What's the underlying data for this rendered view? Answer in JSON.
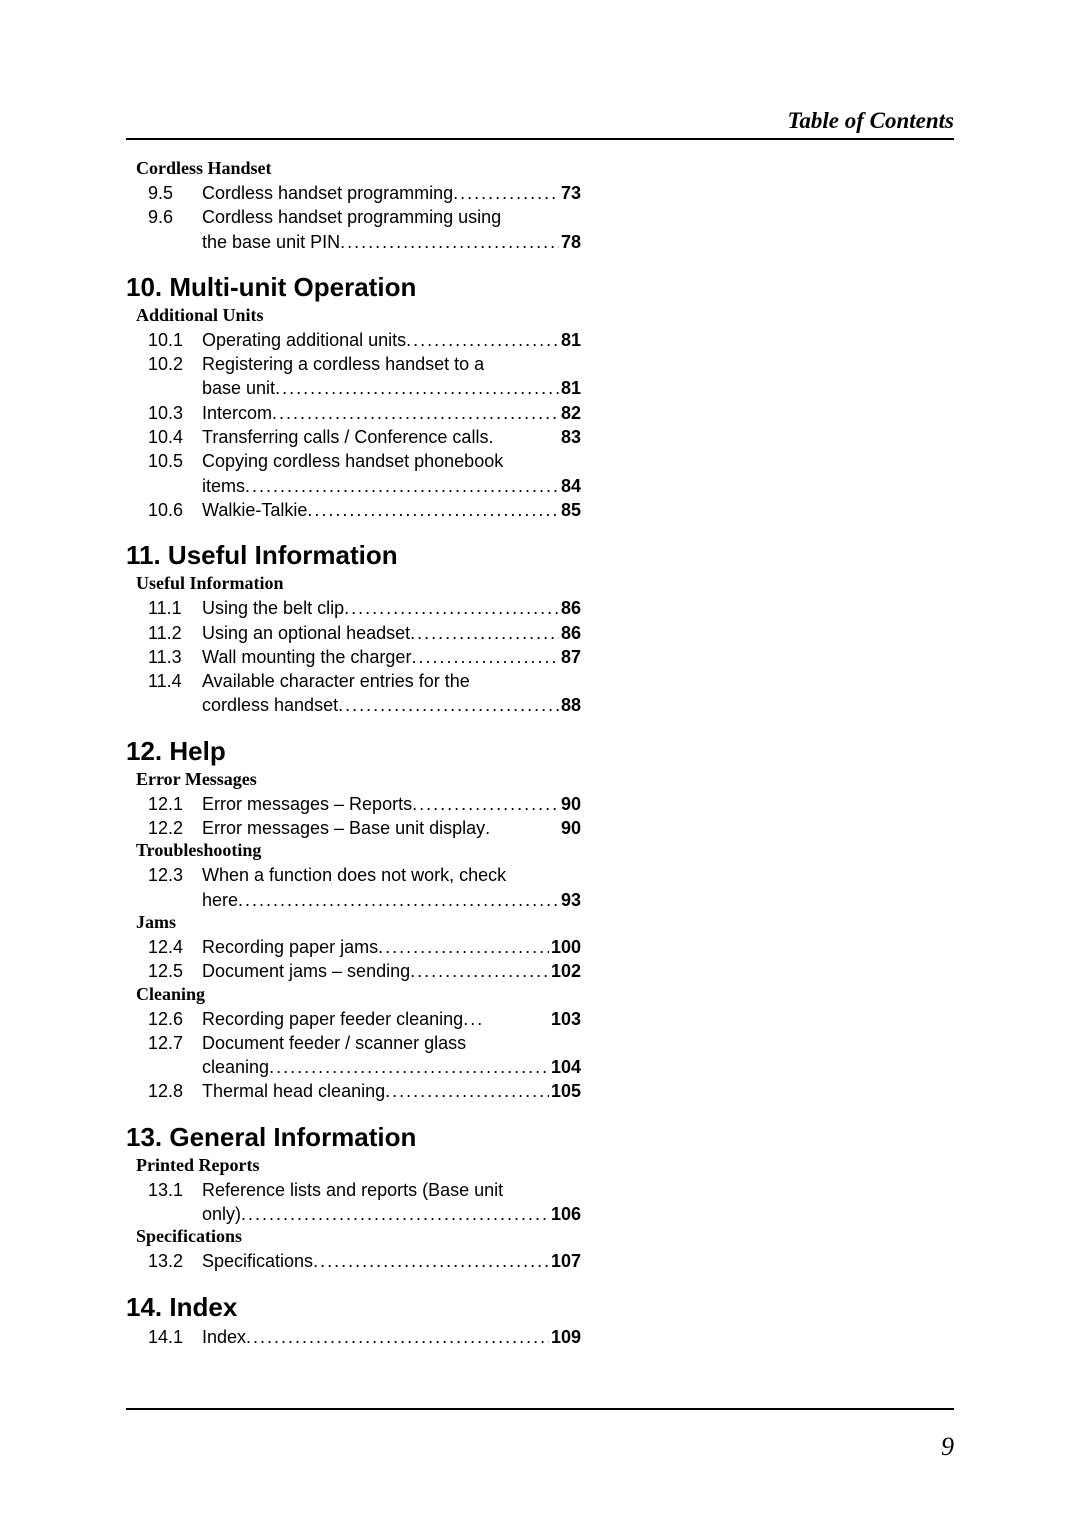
{
  "running_head": "Table of Contents",
  "page_number": "9",
  "dots": "...............................................................",
  "sections": {
    "cordless_handset": {
      "heading": "Cordless Handset",
      "items": [
        {
          "num": "9.5",
          "label": "Cordless handset programming",
          "page": "73"
        },
        {
          "num": "9.6",
          "label_line1": "Cordless handset programming using",
          "label_line2": "the base unit PIN",
          "page": "78"
        }
      ]
    },
    "ch10": {
      "title": "10. Multi-unit Operation",
      "sub": "Additional Units",
      "items": [
        {
          "num": "10.1",
          "label": "Operating additional units",
          "page": "81"
        },
        {
          "num": "10.2",
          "label_line1": "Registering a cordless handset to a",
          "label_line2": "base unit",
          "page": "81"
        },
        {
          "num": "10.3",
          "label": "Intercom",
          "page": "82"
        },
        {
          "num": "10.4",
          "label": "Transferring calls / Conference calls",
          "page": "83",
          "tight": true
        },
        {
          "num": "10.5",
          "label_line1": "Copying cordless handset phonebook",
          "label_line2": "items",
          "page": "84"
        },
        {
          "num": "10.6",
          "label": "Walkie-Talkie",
          "page": "85"
        }
      ]
    },
    "ch11": {
      "title": "11. Useful Information",
      "sub": "Useful Information",
      "items": [
        {
          "num": "11.1",
          "label": "Using the belt clip",
          "page": "86"
        },
        {
          "num": "11.2",
          "label": "Using an optional headset",
          "page": "86"
        },
        {
          "num": "11.3",
          "label": "Wall mounting the charger",
          "page": "87"
        },
        {
          "num": "11.4",
          "label_line1": "Available character entries for the",
          "label_line2": "cordless handset",
          "page": "88"
        }
      ]
    },
    "ch12": {
      "title": "12. Help",
      "groups": [
        {
          "sub": "Error Messages",
          "items": [
            {
              "num": "12.1",
              "label": "Error messages – Reports",
              "page": "90"
            },
            {
              "num": "12.2",
              "label": "Error messages – Base unit display",
              "page": "90",
              "tight": true
            }
          ]
        },
        {
          "sub": "Troubleshooting",
          "items": [
            {
              "num": "12.3",
              "label_line1": "When a function does not work, check",
              "label_line2": "here",
              "page": "93"
            }
          ]
        },
        {
          "sub": "Jams",
          "items": [
            {
              "num": "12.4",
              "label": "Recording paper jams",
              "page": "100"
            },
            {
              "num": "12.5",
              "label": "Document jams – sending",
              "page": "102"
            }
          ]
        },
        {
          "sub": "Cleaning",
          "items": [
            {
              "num": "12.6",
              "label": "Recording paper feeder cleaning",
              "page": "103"
            },
            {
              "num": "12.7",
              "label_line1": "Document feeder / scanner glass",
              "label_line2": "cleaning",
              "page": "104"
            },
            {
              "num": "12.8",
              "label": "Thermal head cleaning",
              "page": "105"
            }
          ]
        }
      ]
    },
    "ch13": {
      "title": "13. General Information",
      "groups": [
        {
          "sub": "Printed Reports",
          "items": [
            {
              "num": "13.1",
              "label_line1": "Reference lists and reports (Base unit",
              "label_line2": "only)",
              "page": "106"
            }
          ]
        },
        {
          "sub": "Specifications",
          "items": [
            {
              "num": "13.2",
              "label": "Specifications",
              "page": "107"
            }
          ]
        }
      ]
    },
    "ch14": {
      "title": "14. Index",
      "items": [
        {
          "num": "14.1",
          "label": "Index",
          "page": "109"
        }
      ]
    }
  }
}
